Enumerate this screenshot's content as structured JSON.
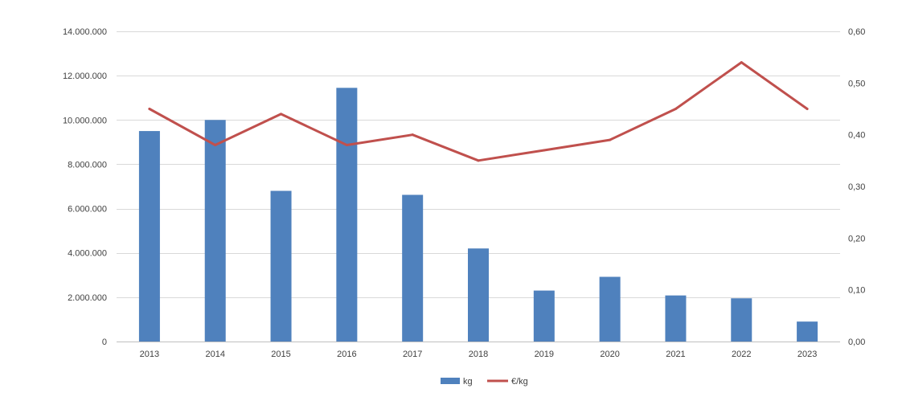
{
  "chart_data": {
    "type": "bar",
    "categories": [
      "2013",
      "2014",
      "2015",
      "2016",
      "2017",
      "2018",
      "2019",
      "2020",
      "2021",
      "2022",
      "2023"
    ],
    "series": [
      {
        "name": "kg",
        "type": "bar",
        "axis": "left",
        "color": "#4f81bd",
        "values": [
          9500000,
          10000000,
          6800000,
          11450000,
          6620000,
          4200000,
          2300000,
          2920000,
          2080000,
          1950000,
          900000
        ]
      },
      {
        "name": "€/kg",
        "type": "line",
        "axis": "right",
        "color": "#c0504d",
        "values": [
          0.45,
          0.38,
          0.44,
          0.38,
          0.4,
          0.35,
          0.37,
          0.39,
          0.45,
          0.54,
          0.45
        ]
      }
    ],
    "y_left": {
      "ylim": [
        0,
        14000000
      ],
      "ticks": [
        0,
        2000000,
        4000000,
        6000000,
        8000000,
        10000000,
        12000000,
        14000000
      ],
      "tick_labels": [
        "0",
        "2.000.000",
        "4.000.000",
        "6.000.000",
        "8.000.000",
        "10.000.000",
        "12.000.000",
        "14.000.000"
      ]
    },
    "y_right": {
      "ylim": [
        0,
        0.6
      ],
      "ticks": [
        0,
        0.1,
        0.2,
        0.3,
        0.4,
        0.5,
        0.6
      ],
      "tick_labels": [
        "0,00",
        "0,10",
        "0,20",
        "0,30",
        "0,40",
        "0,50",
        "0,60"
      ]
    },
    "grid": true,
    "legend": "bottom-center",
    "title": "",
    "xlabel": "",
    "ylabel": ""
  }
}
